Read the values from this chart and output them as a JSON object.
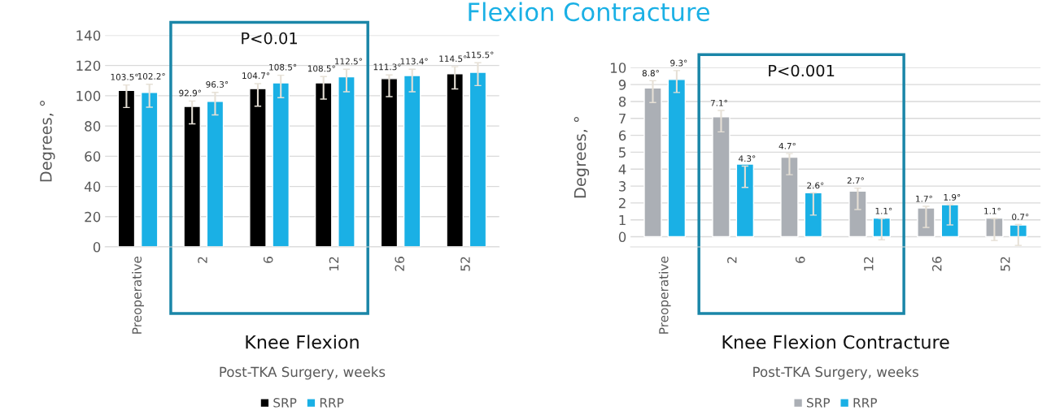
{
  "chart_data": [
    {
      "type": "bar",
      "title": "Knee Flexion",
      "xlabel": "Post-TKA Surgery, weeks",
      "ylabel": "Degrees, °",
      "categories": [
        "Preoperative",
        "2",
        "6",
        "12",
        "26",
        "52"
      ],
      "series": [
        {
          "name": "SRP",
          "color": "#000000",
          "values": [
            103.5,
            92.9,
            104.7,
            108.5,
            111.3,
            114.5
          ],
          "value_labels": [
            "103.5°",
            "92.9°",
            "104.7°",
            "108.5°",
            "111.3°",
            "114.5°"
          ],
          "errors": [
            [
              92.2,
              107.1
            ],
            [
              81.4,
              96.5
            ],
            [
              93.1,
              108.0
            ],
            [
              97.8,
              112.7
            ],
            [
              99.4,
              113.8
            ],
            [
              104.5,
              119.2
            ]
          ]
        },
        {
          "name": "RRP",
          "color": "#1ab0e5",
          "values": [
            102.2,
            96.3,
            108.5,
            112.5,
            113.4,
            115.5
          ],
          "value_labels": [
            "102.2°",
            "96.3°",
            "108.5°",
            "112.5°",
            "113.4°",
            "115.5°"
          ],
          "errors": [
            [
              92.4,
              107.6
            ],
            [
              87.3,
              102.2
            ],
            [
              98.7,
              113.6
            ],
            [
              102.6,
              117.5
            ],
            [
              102.6,
              117.5
            ],
            [
              106.7,
              121.8
            ]
          ]
        }
      ],
      "ylim": [
        0,
        140
      ],
      "yticks": [
        0,
        20,
        40,
        60,
        80,
        100,
        120,
        140
      ],
      "grid": "y",
      "legend": "bottom",
      "annotations": [
        "P<0.01"
      ]
    },
    {
      "type": "bar",
      "title": "Knee Flexion Contracture",
      "xlabel": "Post-TKA Surgery, weeks",
      "ylabel": "Degrees, °",
      "categories": [
        "Preoperative",
        "2",
        "6",
        "12",
        "26",
        "52"
      ],
      "series": [
        {
          "name": "SRP",
          "color": "#abafb5",
          "values": [
            8.8,
            7.1,
            4.7,
            2.7,
            1.7,
            1.1
          ],
          "value_labels": [
            "8.8°",
            "7.1°",
            "4.7°",
            "2.7°",
            "1.7°",
            "1.1°"
          ],
          "errors": [
            [
              7.94,
              9.23
            ],
            [
              6.2,
              7.47
            ],
            [
              3.67,
              4.92
            ],
            [
              1.61,
              2.88
            ],
            [
              0.55,
              1.8
            ],
            [
              -0.22,
              1.08
            ]
          ]
        },
        {
          "name": "RRP",
          "color": "#1ab0e5",
          "values": [
            9.3,
            4.3,
            2.6,
            1.1,
            1.9,
            0.7
          ],
          "value_labels": [
            "9.3°",
            "4.3°",
            "2.6°",
            "1.1°",
            "1.9°",
            "0.7°"
          ],
          "errors": [
            [
              8.53,
              9.83
            ],
            [
              2.92,
              4.18
            ],
            [
              1.28,
              2.59
            ],
            [
              -0.18,
              1.08
            ],
            [
              0.7,
              1.89
            ],
            [
              -0.51,
              0.73
            ]
          ]
        }
      ],
      "ylim": [
        -0.6,
        10
      ],
      "yticks": [
        0,
        1,
        2,
        3,
        4,
        5,
        6,
        7,
        8,
        9,
        10
      ],
      "grid": "y",
      "legend": "bottom",
      "annotations": [
        "P<0.001",
        "Flexion Contracture"
      ]
    }
  ]
}
